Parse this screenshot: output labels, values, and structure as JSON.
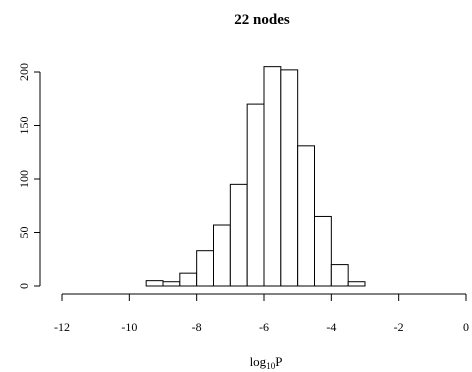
{
  "chart_data": {
    "type": "bar",
    "title": "22 nodes",
    "xlabel": "log10P",
    "xlabel_main": "log",
    "xlabel_sub": "10",
    "xlabel_tail": "P",
    "ylabel": "",
    "xlim": [
      -12,
      0
    ],
    "ylim": [
      0,
      200
    ],
    "x_ticks": [
      -12,
      -10,
      -8,
      -6,
      -4,
      -2,
      0
    ],
    "x_tick_labels": [
      "-12",
      "-10",
      "-8",
      "-6",
      "-4",
      "-2",
      "0"
    ],
    "y_ticks": [
      0,
      50,
      100,
      150,
      200
    ],
    "y_tick_labels": [
      "0",
      "50",
      "100",
      "150",
      "200"
    ],
    "bin_width": 0.5,
    "bins": [
      {
        "start": -9.5,
        "end": -9.0,
        "count": 5
      },
      {
        "start": -9.0,
        "end": -8.5,
        "count": 4
      },
      {
        "start": -8.5,
        "end": -8.0,
        "count": 12
      },
      {
        "start": -8.0,
        "end": -7.5,
        "count": 33
      },
      {
        "start": -7.5,
        "end": -7.0,
        "count": 57
      },
      {
        "start": -7.0,
        "end": -6.5,
        "count": 95
      },
      {
        "start": -6.5,
        "end": -6.0,
        "count": 170
      },
      {
        "start": -6.0,
        "end": -5.5,
        "count": 205
      },
      {
        "start": -5.5,
        "end": -5.0,
        "count": 202
      },
      {
        "start": -5.0,
        "end": -4.5,
        "count": 131
      },
      {
        "start": -4.5,
        "end": -4.0,
        "count": 65
      },
      {
        "start": -4.0,
        "end": -3.5,
        "count": 20
      },
      {
        "start": -3.5,
        "end": -3.0,
        "count": 4
      }
    ]
  }
}
